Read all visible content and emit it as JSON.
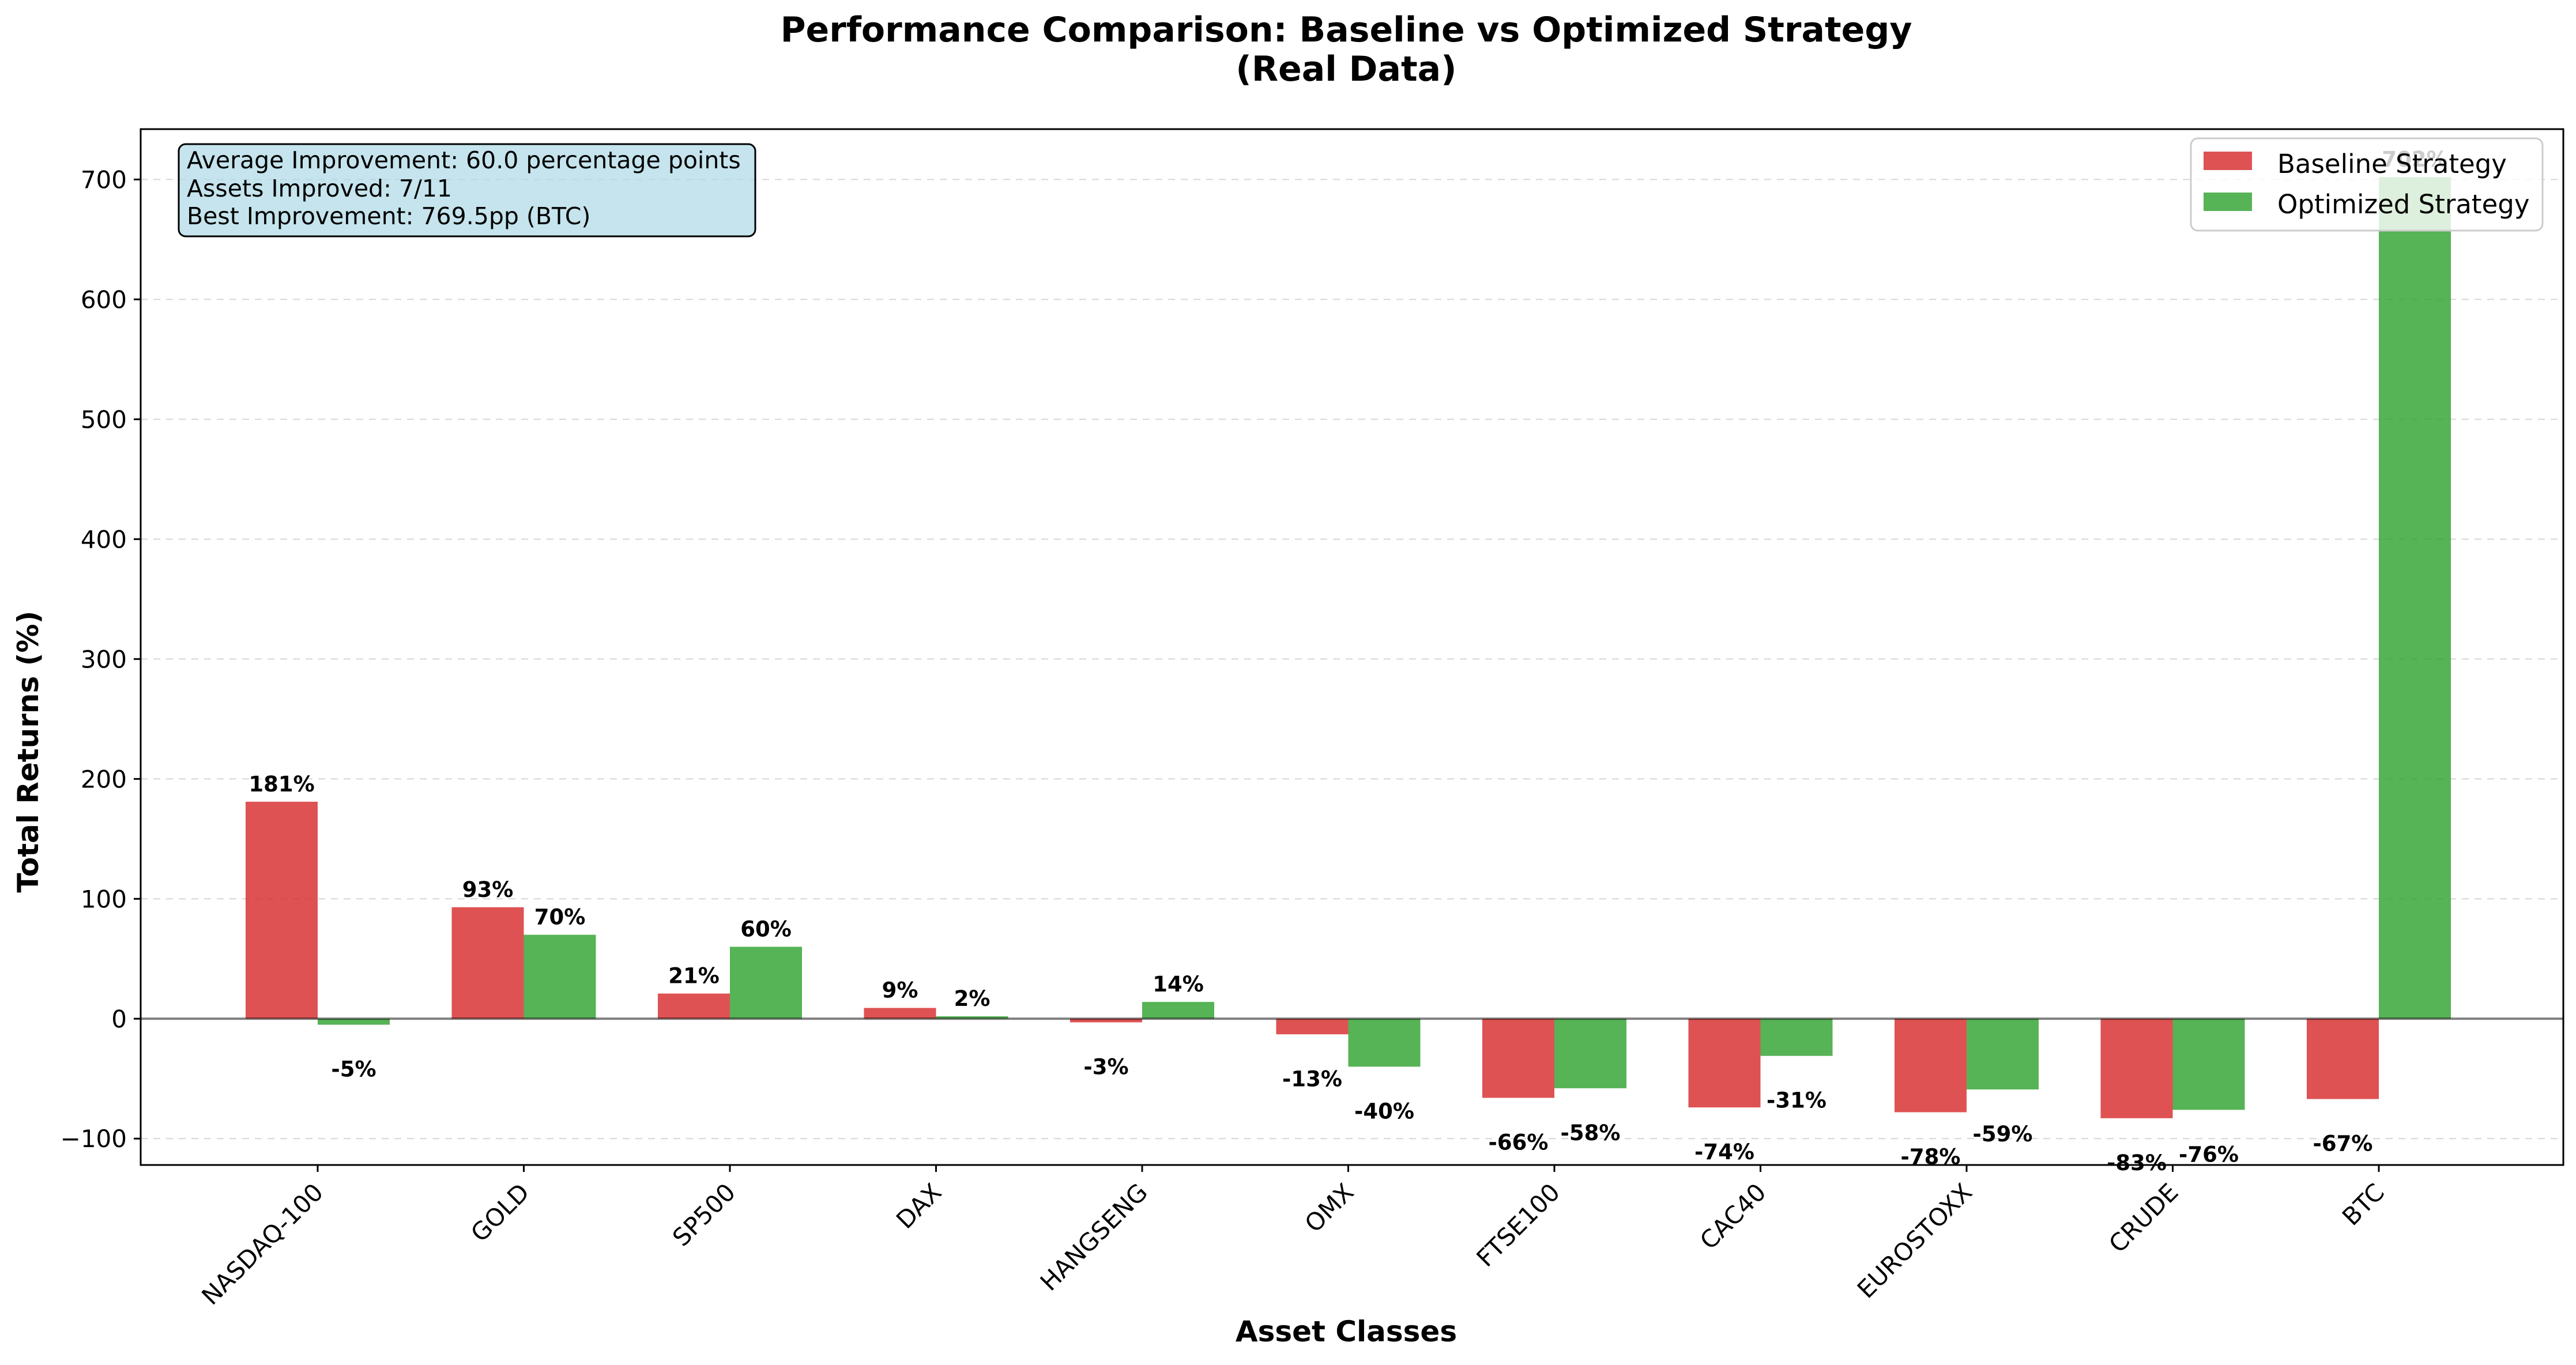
{
  "chart_data": {
    "type": "bar",
    "title": "Performance Comparison: Baseline vs Optimized Strategy",
    "subtitle": "(Real Data)",
    "xlabel": "Asset Classes",
    "ylabel": "Total Returns (%)",
    "ylim": [
      -122,
      742
    ],
    "yticks": [
      -100,
      0,
      100,
      200,
      300,
      400,
      500,
      600,
      700
    ],
    "ytick_labels": [
      "−100",
      "0",
      "100",
      "200",
      "300",
      "400",
      "500",
      "600",
      "700"
    ],
    "grid": "y dashed",
    "legend_position": "top-right",
    "categories": [
      "NASDAQ-100",
      "GOLD",
      "SP500",
      "DAX",
      "HANGSENG",
      "OMX",
      "FTSE100",
      "CAC40",
      "EUROSTOXX",
      "CRUDE",
      "BTC"
    ],
    "series": [
      {
        "name": "Baseline Strategy",
        "color": "#d62728",
        "values": [
          181,
          93,
          21,
          9,
          -3,
          -13,
          -66,
          -74,
          -78,
          -83,
          -67
        ],
        "labels": [
          "181%",
          "93%",
          "21%",
          "9%",
          "-3%",
          "-13%",
          "-66%",
          "-74%",
          "-78%",
          "-83%",
          "-67%"
        ]
      },
      {
        "name": "Optimized Strategy",
        "color": "#2ca02c",
        "values": [
          -5,
          70,
          60,
          2,
          14,
          -40,
          -58,
          -31,
          -59,
          -76,
          702
        ],
        "labels": [
          "-5%",
          "70%",
          "60%",
          "2%",
          "14%",
          "-40%",
          "-58%",
          "-31%",
          "-59%",
          "-76%",
          "702%"
        ]
      }
    ],
    "annotation_box": {
      "lines": [
        "Average Improvement: 60.0 percentage points",
        "Assets Improved: 7/11",
        "Best Improvement: 769.5pp (BTC)"
      ],
      "background": "#add8e6"
    }
  }
}
